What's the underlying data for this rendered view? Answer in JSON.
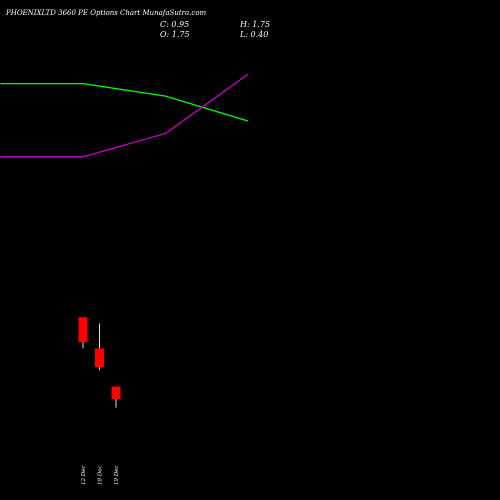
{
  "header": {
    "title": "PHOENIXLTD 3660 PE Options Chart MunafaSutra.com",
    "close_label": "C: 0.95",
    "high_label": "H: 1.75",
    "open_label": "O: 1.75",
    "low_label": "L: 0.40"
  },
  "colors": {
    "background": "#000000",
    "text": "#ffffff",
    "candle_down": "#ff0000",
    "ma_short": "#00ff00",
    "ma_long": "#cc00cc"
  },
  "chart_data": {
    "type": "candlestick",
    "categories": [
      "12 Dec",
      "18 Dec",
      "19 Dec"
    ],
    "candles": [
      {
        "date": "12 Dec",
        "open": 6.2,
        "high": 6.2,
        "low": 4.2,
        "close": 4.6
      },
      {
        "date": "18 Dec",
        "open": 4.2,
        "high": 5.8,
        "low": 2.8,
        "close": 3.0
      },
      {
        "date": "19 Dec",
        "open": 1.75,
        "high": 1.75,
        "low": 0.4,
        "close": 0.95
      }
    ],
    "ylim": [
      -2,
      24
    ],
    "overlay_lines": [
      {
        "color": "#00ff00",
        "points": [
          [
            -5,
            21.2
          ],
          [
            0,
            21.2
          ],
          [
            5,
            20.4
          ],
          [
            10,
            18.8
          ]
        ]
      },
      {
        "color": "#cc00cc",
        "points": [
          [
            -5,
            16.5
          ],
          [
            0,
            16.5
          ],
          [
            5,
            18.0
          ],
          [
            10,
            21.8
          ]
        ]
      }
    ]
  }
}
